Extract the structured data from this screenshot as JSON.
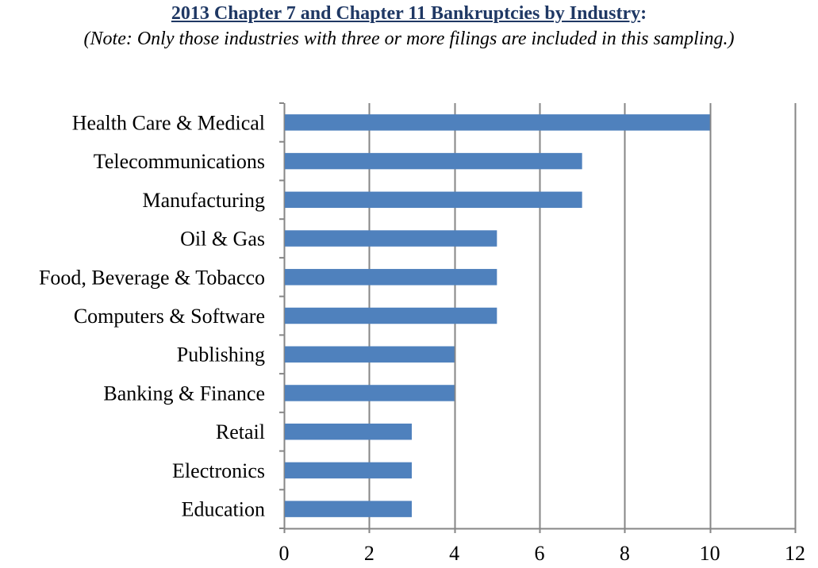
{
  "chart_data": {
    "type": "bar",
    "orientation": "horizontal",
    "title": "2013 Chapter 7 and Chapter 11 Bankruptcies by Industry",
    "title_suffix": ":",
    "subtitle": "(Note: Only those industries with three or more filings are included in this sampling.)",
    "categories": [
      "Health Care & Medical",
      "Telecommunications",
      "Manufacturing",
      "Oil & Gas",
      "Food, Beverage & Tobacco",
      "Computers & Software",
      "Publishing",
      "Banking & Finance",
      "Retail",
      "Electronics",
      "Education"
    ],
    "values": [
      10,
      7,
      7,
      5,
      5,
      5,
      4,
      4,
      3,
      3,
      3
    ],
    "xlim": [
      0,
      12
    ],
    "xticks": [
      0,
      2,
      4,
      6,
      8,
      10,
      12
    ],
    "xtick_labels": [
      "0",
      "2",
      "4",
      "6",
      "8",
      "10",
      "12"
    ],
    "grid": "vertical",
    "legend": "none",
    "bar_color": "#4f81bd",
    "grid_color": "#868686",
    "title_color": "#1f3864"
  }
}
